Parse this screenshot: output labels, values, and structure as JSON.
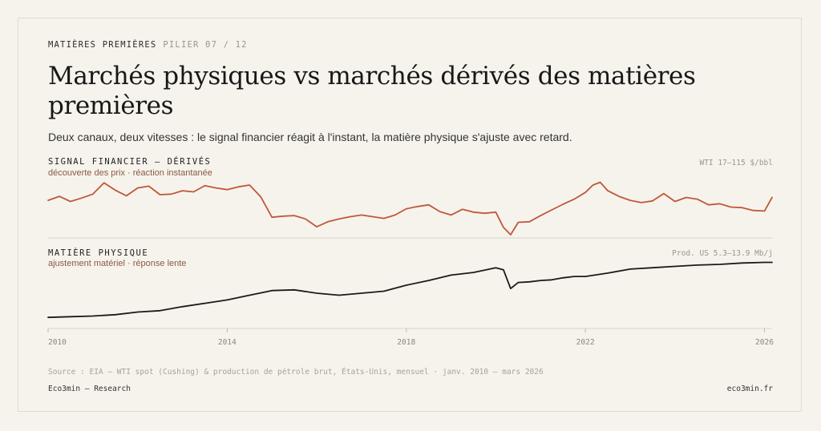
{
  "header": {
    "kicker": "MATIÈRES PREMIÈRES",
    "pill": "PILIER 07 / 12",
    "title": "Marchés physiques vs marchés dérivés des matières premières",
    "subtitle": "Deux canaux, deux vitesses : le signal financier réagit à l'instant, la matière physique s'ajuste avec retard."
  },
  "colors": {
    "financial": "#c0583a",
    "physical": "#1a1a1a",
    "grid": "#d8d4ca",
    "background": "#f6f3ec"
  },
  "chart_data": [
    {
      "type": "line",
      "label": "SIGNAL FINANCIER — DÉRIVÉS",
      "sublabel": "découverte des prix · réaction instantanée",
      "range_label": "WTI 17–115 $/bbl",
      "ylim": [
        17,
        115
      ],
      "unit": "$/bbl",
      "x": [
        2010.0,
        2010.25,
        2010.5,
        2010.75,
        2011.0,
        2011.25,
        2011.5,
        2011.75,
        2012.0,
        2012.25,
        2012.5,
        2012.75,
        2013.0,
        2013.25,
        2013.5,
        2013.75,
        2014.0,
        2014.25,
        2014.5,
        2014.75,
        2015.0,
        2015.25,
        2015.5,
        2015.75,
        2016.0,
        2016.25,
        2016.5,
        2016.75,
        2017.0,
        2017.25,
        2017.5,
        2017.75,
        2018.0,
        2018.25,
        2018.5,
        2018.75,
        2019.0,
        2019.25,
        2019.5,
        2019.75,
        2020.0,
        2020.17,
        2020.33,
        2020.5,
        2020.75,
        2021.0,
        2021.25,
        2021.5,
        2021.75,
        2022.0,
        2022.17,
        2022.33,
        2022.5,
        2022.75,
        2023.0,
        2023.25,
        2023.5,
        2023.75,
        2024.0,
        2024.25,
        2024.5,
        2024.75,
        2025.0,
        2025.25,
        2025.5,
        2025.75,
        2026.0,
        2026.17
      ],
      "values": [
        78,
        85,
        76,
        82,
        89,
        109,
        96,
        86,
        100,
        103,
        88,
        89,
        95,
        93,
        104,
        100,
        97,
        102,
        105,
        84,
        48,
        50,
        51,
        45,
        31,
        40,
        45,
        49,
        52,
        49,
        46,
        52,
        63,
        67,
        70,
        58,
        52,
        62,
        57,
        55,
        57,
        30,
        17,
        39,
        40,
        51,
        61,
        71,
        80,
        92,
        105,
        110,
        95,
        85,
        78,
        74,
        77,
        90,
        76,
        83,
        80,
        70,
        72,
        66,
        65,
        60,
        59,
        83
      ]
    },
    {
      "type": "line",
      "label": "MATIÈRE PHYSIQUE",
      "sublabel": "ajustement matériel · réponse lente",
      "range_label": "Prod. US 5.3–13.9 Mb/j",
      "ylim": [
        5.3,
        13.9
      ],
      "unit": "Mb/j",
      "x": [
        2010.0,
        2010.5,
        2011.0,
        2011.5,
        2012.0,
        2012.5,
        2013.0,
        2013.5,
        2014.0,
        2014.5,
        2015.0,
        2015.5,
        2016.0,
        2016.5,
        2017.0,
        2017.5,
        2018.0,
        2018.5,
        2019.0,
        2019.5,
        2020.0,
        2020.17,
        2020.33,
        2020.5,
        2020.75,
        2021.0,
        2021.25,
        2021.5,
        2021.75,
        2022.0,
        2022.5,
        2023.0,
        2023.5,
        2024.0,
        2024.5,
        2025.0,
        2025.5,
        2026.0,
        2026.17
      ],
      "values": [
        5.4,
        5.5,
        5.6,
        5.8,
        6.2,
        6.4,
        7.0,
        7.5,
        8.0,
        8.7,
        9.4,
        9.5,
        9.0,
        8.7,
        9.0,
        9.3,
        10.2,
        10.9,
        11.7,
        12.1,
        12.8,
        12.5,
        9.7,
        10.6,
        10.7,
        10.9,
        11.0,
        11.3,
        11.5,
        11.5,
        12.0,
        12.6,
        12.8,
        13.0,
        13.2,
        13.3,
        13.5,
        13.6,
        13.6
      ]
    }
  ],
  "x_axis": {
    "ticks": [
      "2010",
      "2014",
      "2018",
      "2022",
      "2026"
    ]
  },
  "footer": {
    "source": "Source : EIA — WTI spot (Cushing) & production de pétrole brut, États-Unis, mensuel · janv. 2010 — mars 2026",
    "brand": "Eco3min — Research",
    "url": "eco3min.fr"
  }
}
